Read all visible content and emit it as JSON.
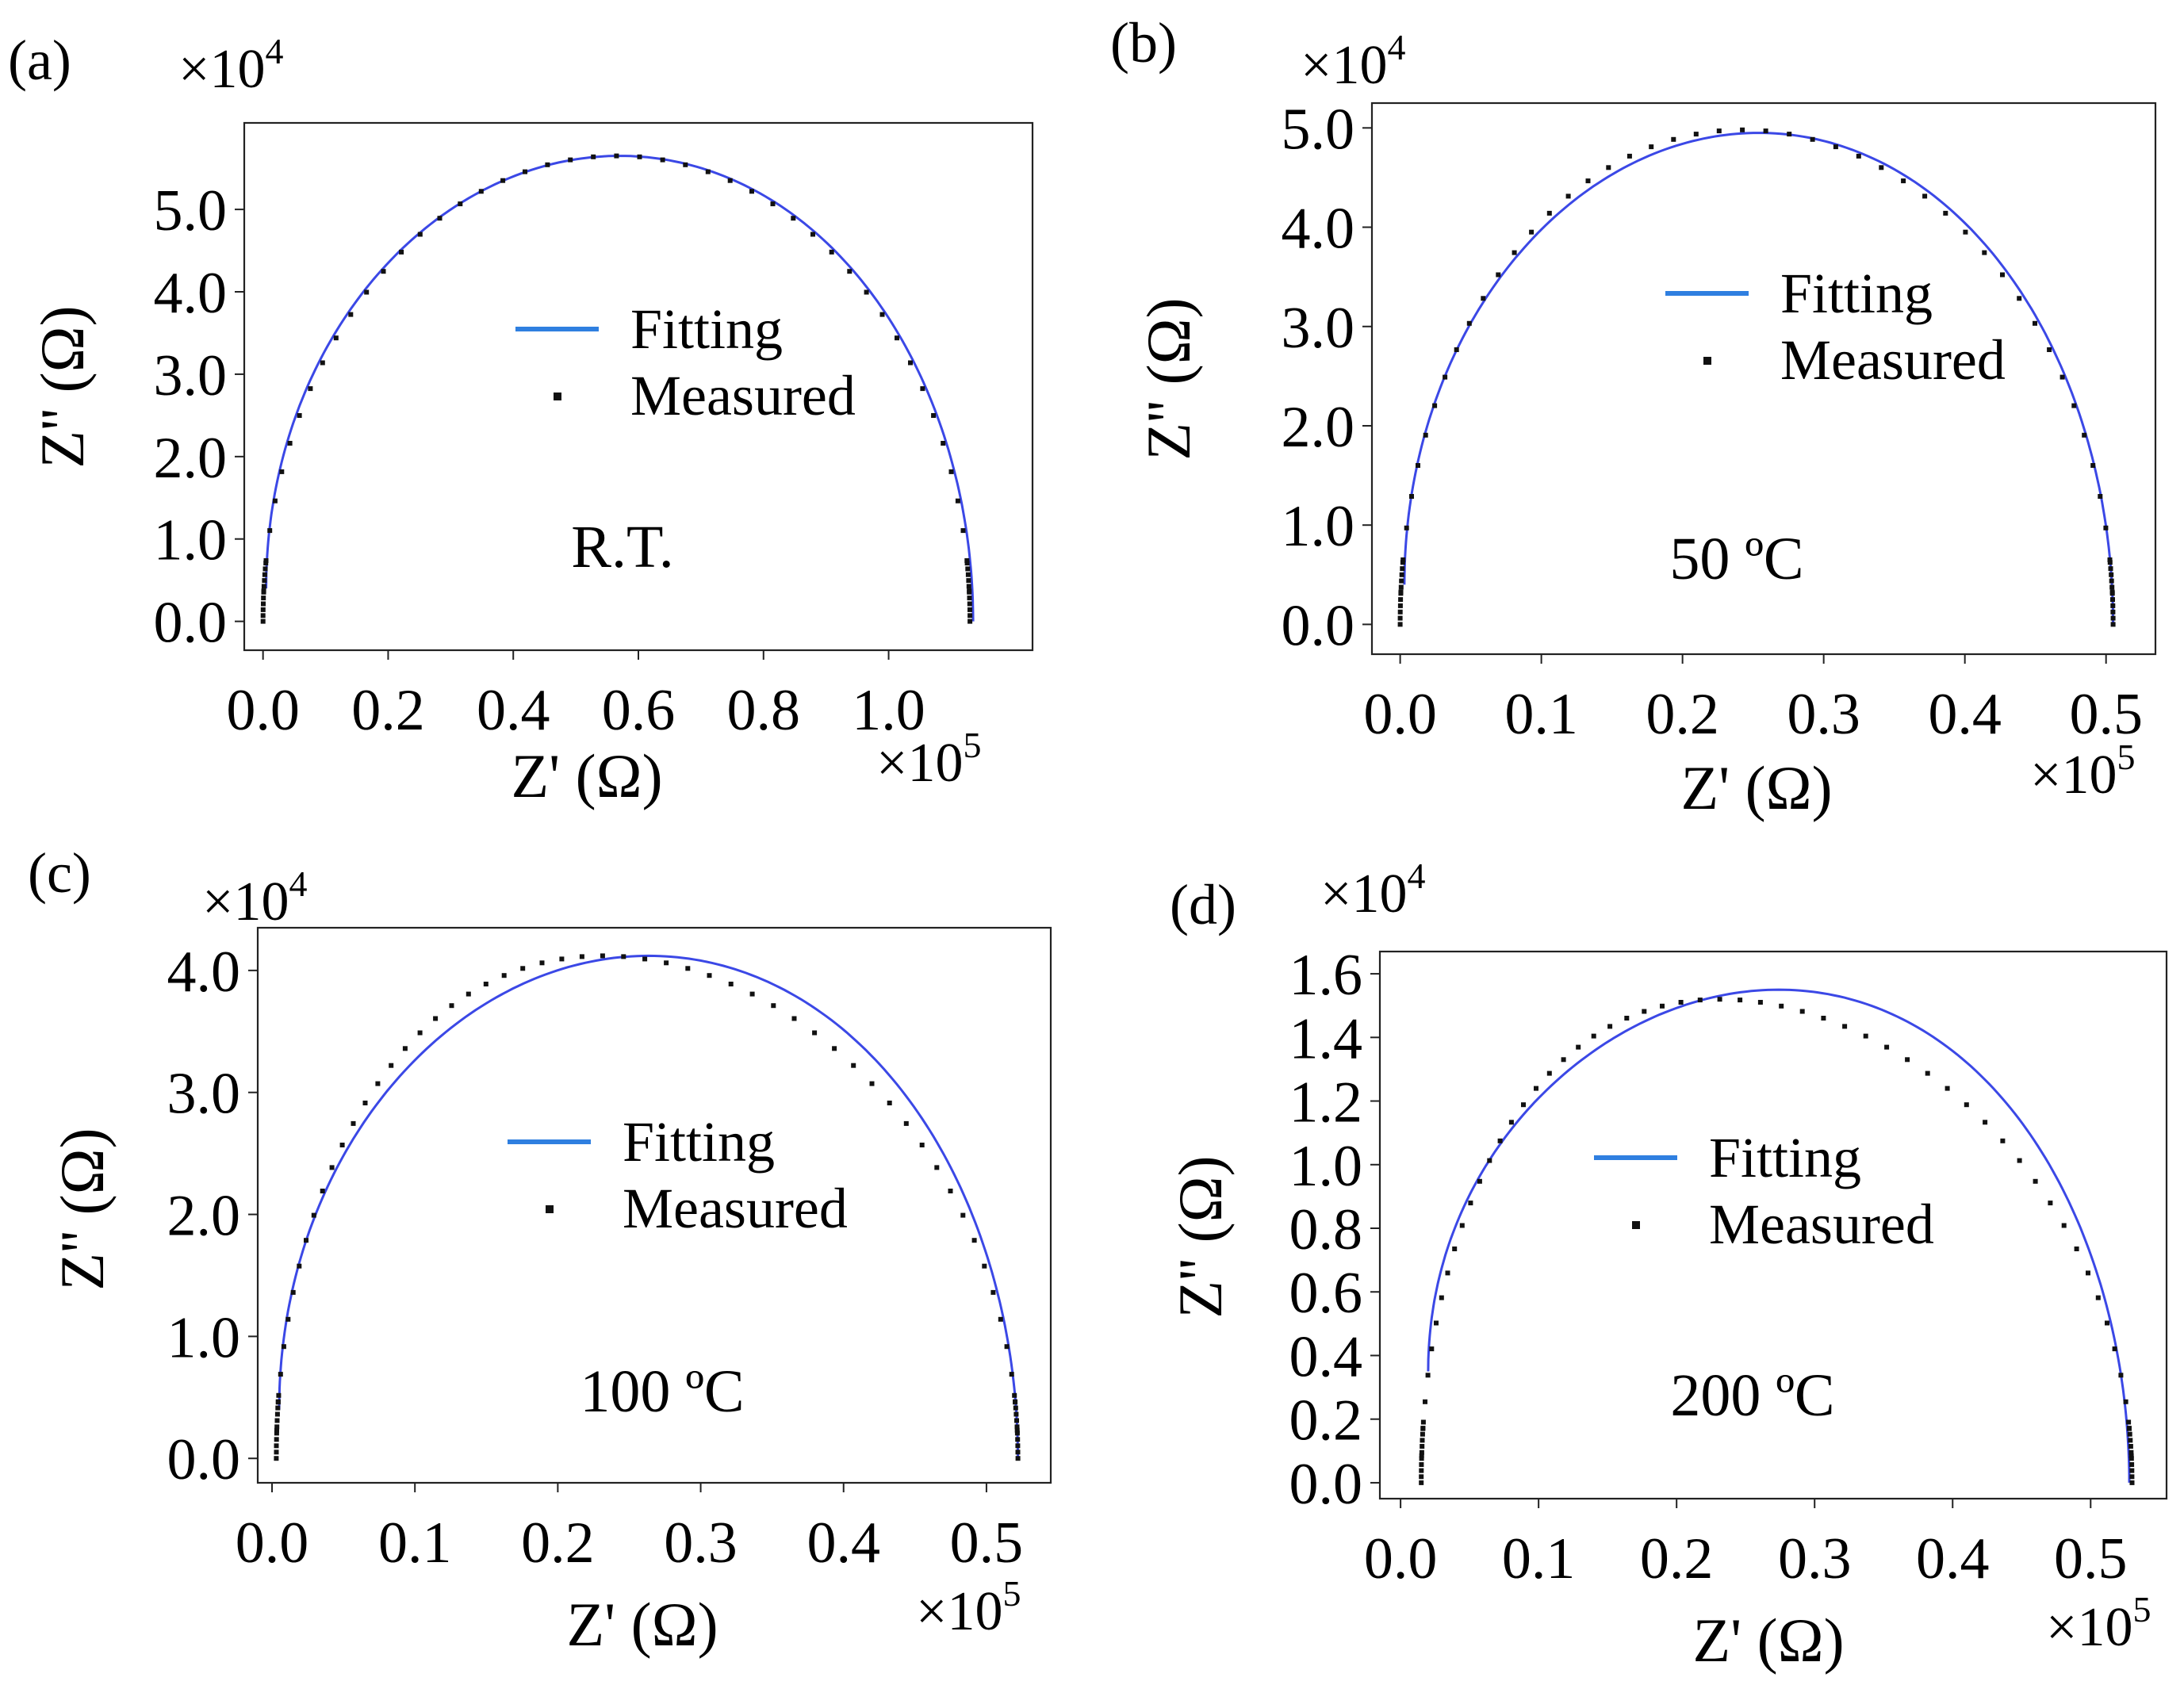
{
  "colors": {
    "fit": "#3b48e6",
    "legend_fit": "#2f7fe0",
    "measured": "#111111",
    "frame": "#222222"
  },
  "chart_data": [
    {
      "type": "scatter",
      "panel": "(a)",
      "annotation": "R.T.",
      "x_multiplier": "×10",
      "x_exponent": "5",
      "y_multiplier": "×10",
      "y_exponent": "4",
      "xlabel": "Z' (Ω)",
      "ylabel": "Z'' (Ω)",
      "xlim": [
        -0.03,
        1.23
      ],
      "ylim": [
        -0.35,
        6.05
      ],
      "x_ticks": [
        0.0,
        0.2,
        0.4,
        0.6,
        0.8,
        1.0
      ],
      "y_ticks": [
        0.0,
        1.0,
        2.0,
        3.0,
        4.0,
        5.0
      ],
      "x_tick_labels": [
        "0.0",
        "0.2",
        "0.4",
        "0.6",
        "0.8",
        "1.0"
      ],
      "y_tick_labels": [
        "0.0",
        "1.0",
        "2.0",
        "3.0",
        "4.0",
        "5.0"
      ],
      "legend": {
        "fit_label": "Fitting",
        "measured_label": "Measured"
      },
      "series": [
        {
          "name": "Fitting",
          "kind": "arc",
          "x_start": 0.005,
          "x_end": 1.135,
          "peak_y": 5.65,
          "y_start": 0.4,
          "y_end": 0.0
        },
        {
          "name": "Measured",
          "kind": "points",
          "x_start": 0.0,
          "x_end": 1.13,
          "peak_y": 5.65,
          "n_points": 48,
          "skew": 0.0
        }
      ]
    },
    {
      "type": "scatter",
      "panel": "(b)",
      "annotation": "50 ºC",
      "x_multiplier": "×10",
      "x_exponent": "5",
      "y_multiplier": "×10",
      "y_exponent": "4",
      "xlabel": "Z' (Ω)",
      "ylabel": "Z'' (Ω)",
      "xlim": [
        -0.02,
        0.535
      ],
      "ylim": [
        -0.3,
        5.25
      ],
      "x_ticks": [
        0.0,
        0.1,
        0.2,
        0.3,
        0.4,
        0.5
      ],
      "y_ticks": [
        0.0,
        1.0,
        2.0,
        3.0,
        4.0,
        5.0
      ],
      "x_tick_labels": [
        "0.0",
        "0.1",
        "0.2",
        "0.3",
        "0.4",
        "0.5"
      ],
      "y_tick_labels": [
        "0.0",
        "1.0",
        "2.0",
        "3.0",
        "4.0",
        "5.0"
      ],
      "legend": {
        "fit_label": "Fitting",
        "measured_label": "Measured"
      },
      "series": [
        {
          "name": "Fitting",
          "kind": "arc",
          "x_start": 0.003,
          "x_end": 0.505,
          "peak_y": 4.95,
          "y_start": 0.4,
          "y_end": 0.0
        },
        {
          "name": "Measured",
          "kind": "points",
          "x_start": 0.0,
          "x_end": 0.505,
          "peak_y": 4.98,
          "n_points": 48,
          "skew": -0.02
        }
      ]
    },
    {
      "type": "scatter",
      "panel": "(c)",
      "annotation": "100 ºC",
      "x_multiplier": "×10",
      "x_exponent": "5",
      "y_multiplier": "×10",
      "y_exponent": "4",
      "xlabel": "Z' (Ω)",
      "ylabel": "Z'' (Ω)",
      "xlim": [
        -0.01,
        0.545
      ],
      "ylim": [
        -0.2,
        4.35
      ],
      "x_ticks": [
        0.0,
        0.1,
        0.2,
        0.3,
        0.4,
        0.5
      ],
      "y_ticks": [
        0.0,
        1.0,
        2.0,
        3.0,
        4.0
      ],
      "x_tick_labels": [
        "0.0",
        "0.1",
        "0.2",
        "0.3",
        "0.4",
        "0.5"
      ],
      "y_tick_labels": [
        "0.0",
        "1.0",
        "2.0",
        "3.0",
        "4.0"
      ],
      "legend": {
        "fit_label": "Fitting",
        "measured_label": "Measured"
      },
      "series": [
        {
          "name": "Fitting",
          "kind": "arc",
          "x_start": 0.005,
          "x_end": 0.522,
          "peak_y": 4.12,
          "y_start": 0.4,
          "y_end": 0.0
        },
        {
          "name": "Measured",
          "kind": "points",
          "x_start": 0.003,
          "x_end": 0.522,
          "peak_y": 4.12,
          "n_points": 56,
          "skew": -0.06
        }
      ]
    },
    {
      "type": "scatter",
      "panel": "(d)",
      "annotation": "200 ºC",
      "x_multiplier": "×10",
      "x_exponent": "5",
      "y_multiplier": "×10",
      "y_exponent": "4",
      "xlabel": "Z' (Ω)",
      "ylabel": "Z'' (Ω)",
      "xlim": [
        -0.015,
        0.555
      ],
      "ylim": [
        -0.05,
        1.67
      ],
      "x_ticks": [
        0.0,
        0.1,
        0.2,
        0.3,
        0.4,
        0.5
      ],
      "y_ticks": [
        0.0,
        0.2,
        0.4,
        0.6,
        0.8,
        1.0,
        1.2,
        1.4,
        1.6
      ],
      "x_tick_labels": [
        "0.0",
        "0.1",
        "0.2",
        "0.3",
        "0.4",
        "0.5"
      ],
      "y_tick_labels": [
        "0.0",
        "0.2",
        "0.4",
        "0.6",
        "0.8",
        "1.0",
        "1.2",
        "1.4",
        "1.6"
      ],
      "legend": {
        "fit_label": "Fitting",
        "measured_label": "Measured"
      },
      "series": [
        {
          "name": "Fitting",
          "kind": "arc",
          "x_start": 0.02,
          "x_end": 0.528,
          "peak_y": 1.55,
          "y_start": 0.35,
          "y_end": 0.0
        },
        {
          "name": "Measured",
          "kind": "points",
          "x_start": 0.015,
          "x_end": 0.53,
          "peak_y": 1.52,
          "n_points": 56,
          "skew": -0.08
        }
      ]
    }
  ]
}
